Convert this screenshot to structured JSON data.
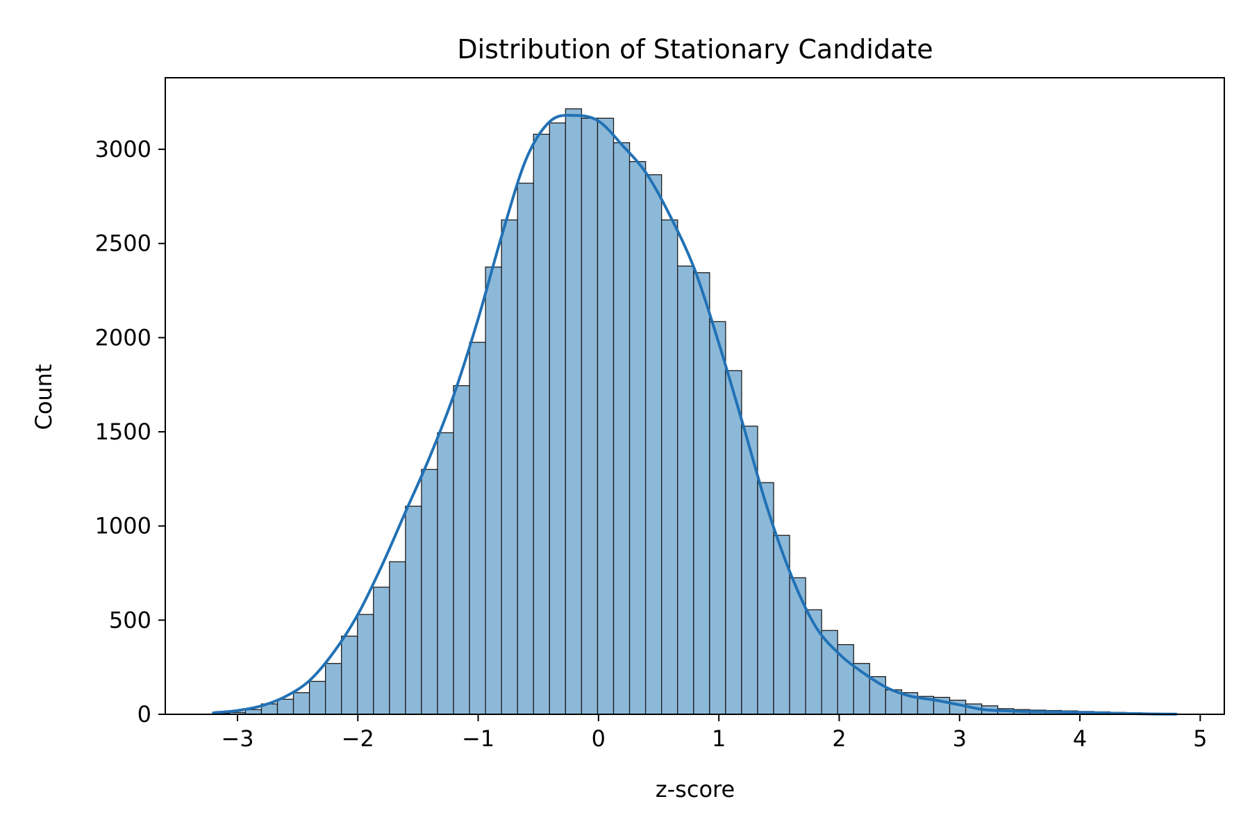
{
  "chart_data": {
    "type": "bar",
    "subtype": "histogram-with-kde",
    "title": "Distribution of Stationary Candidate",
    "xlabel": "z-score",
    "ylabel": "Count",
    "xlim": [
      -3.6,
      5.2
    ],
    "ylim": [
      0,
      3380
    ],
    "x_ticks": [
      -3,
      -2,
      -1,
      0,
      1,
      2,
      3,
      4,
      5
    ],
    "x_tick_labels": [
      "−3",
      "−2",
      "−1",
      "0",
      "1",
      "2",
      "3",
      "4",
      "5"
    ],
    "y_ticks": [
      0,
      500,
      1000,
      1500,
      2000,
      2500,
      3000
    ],
    "y_tick_labels": [
      "0",
      "500",
      "1000",
      "1500",
      "2000",
      "2500",
      "3000"
    ],
    "grid": false,
    "bins": {
      "start": -3.2,
      "width": 0.133,
      "counts": [
        5,
        10,
        25,
        55,
        80,
        115,
        175,
        270,
        415,
        530,
        675,
        810,
        1105,
        1300,
        1495,
        1745,
        1975,
        2375,
        2625,
        2820,
        3080,
        3140,
        3215,
        3165,
        3165,
        3035,
        2935,
        2865,
        2625,
        2380,
        2345,
        2085,
        1825,
        1530,
        1230,
        950,
        725,
        555,
        445,
        370,
        270,
        200,
        130,
        115,
        95,
        90,
        75,
        55,
        45,
        30,
        25,
        22,
        20,
        18,
        15,
        13,
        10,
        8,
        6,
        4
      ]
    },
    "kde": {
      "x": [
        -3.2,
        -3.0,
        -2.8,
        -2.6,
        -2.4,
        -2.2,
        -2.0,
        -1.8,
        -1.6,
        -1.4,
        -1.2,
        -1.0,
        -0.8,
        -0.6,
        -0.4,
        -0.2,
        0.0,
        0.2,
        0.4,
        0.6,
        0.8,
        1.0,
        1.2,
        1.4,
        1.6,
        1.8,
        2.0,
        2.2,
        2.4,
        2.6,
        2.8,
        3.0,
        3.2,
        3.4,
        3.6,
        3.8,
        4.0,
        4.2,
        4.4,
        4.6,
        4.8
      ],
      "y": [
        8,
        20,
        45,
        95,
        180,
        330,
        530,
        790,
        1080,
        1370,
        1700,
        2100,
        2550,
        2950,
        3150,
        3180,
        3150,
        3020,
        2870,
        2640,
        2360,
        1970,
        1540,
        1100,
        740,
        470,
        320,
        220,
        140,
        95,
        75,
        50,
        25,
        18,
        14,
        12,
        10,
        7,
        4,
        2,
        1
      ]
    },
    "colors": {
      "bar_fill": "#8db9d9",
      "bar_edge": "#1a1a1a",
      "kde_line": "#2171b5"
    }
  }
}
